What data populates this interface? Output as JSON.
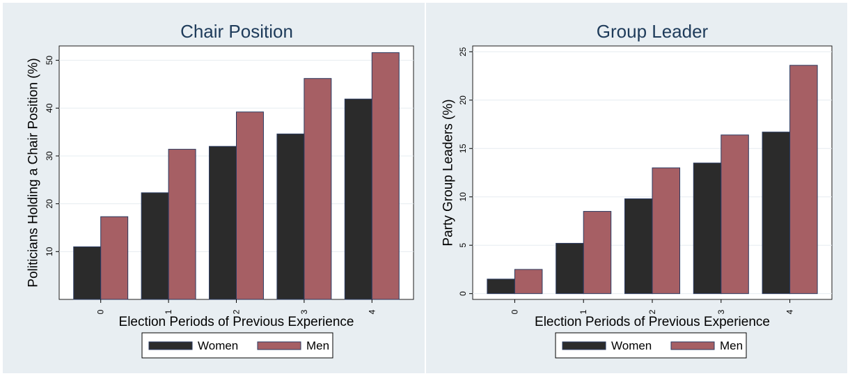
{
  "chart_data": [
    {
      "type": "bar",
      "title": "Chair Position",
      "xlabel": "Election Periods of Previous Experience",
      "ylabel": "Politicians Holding a Chair Position (%)",
      "categories": [
        "0",
        "1",
        "2",
        "3",
        "4"
      ],
      "ylim": [
        0,
        53
      ],
      "yticks": [
        10,
        20,
        30,
        40,
        50
      ],
      "grid": true,
      "legend": "bottom",
      "series": [
        {
          "name": "Women",
          "color": "#2b2b2b",
          "values": [
            11,
            22.3,
            32,
            34.6,
            41.9
          ]
        },
        {
          "name": "Men",
          "color": "#a65f64",
          "values": [
            17.3,
            31.4,
            39.2,
            46.2,
            51.6
          ]
        }
      ]
    },
    {
      "type": "bar",
      "title": "Group Leader",
      "xlabel": "Election Periods of Previous Experience",
      "ylabel": "Party Group Leaders (%)",
      "categories": [
        "0",
        "1",
        "2",
        "3",
        "4"
      ],
      "ylim": [
        -0.6,
        25.6
      ],
      "yticks": [
        0,
        5,
        10,
        15,
        20,
        25
      ],
      "grid": true,
      "legend": "bottom",
      "series": [
        {
          "name": "Women",
          "color": "#2b2b2b",
          "values": [
            1.5,
            5.2,
            9.8,
            13.5,
            16.7
          ]
        },
        {
          "name": "Men",
          "color": "#a65f64",
          "values": [
            2.5,
            8.5,
            13.0,
            16.4,
            23.6
          ]
        }
      ]
    }
  ]
}
